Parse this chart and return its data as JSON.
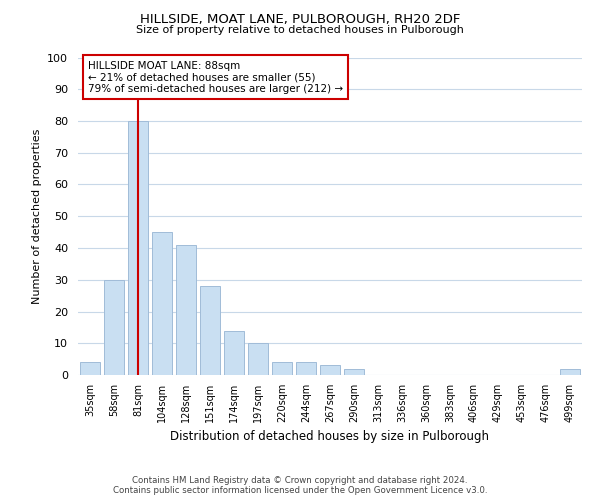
{
  "title": "HILLSIDE, MOAT LANE, PULBOROUGH, RH20 2DF",
  "subtitle": "Size of property relative to detached houses in Pulborough",
  "xlabel": "Distribution of detached houses by size in Pulborough",
  "ylabel": "Number of detached properties",
  "bar_labels": [
    "35sqm",
    "58sqm",
    "81sqm",
    "104sqm",
    "128sqm",
    "151sqm",
    "174sqm",
    "197sqm",
    "220sqm",
    "244sqm",
    "267sqm",
    "290sqm",
    "313sqm",
    "336sqm",
    "360sqm",
    "383sqm",
    "406sqm",
    "429sqm",
    "453sqm",
    "476sqm",
    "499sqm"
  ],
  "bar_values": [
    4,
    30,
    80,
    45,
    41,
    28,
    14,
    10,
    4,
    4,
    3,
    2,
    0,
    0,
    0,
    0,
    0,
    0,
    0,
    0,
    2
  ],
  "bar_color": "#c9dff2",
  "bar_edge_color": "#a0bcd8",
  "vline_x": 2,
  "vline_color": "#cc0000",
  "ylim": [
    0,
    100
  ],
  "yticks": [
    0,
    10,
    20,
    30,
    40,
    50,
    60,
    70,
    80,
    90,
    100
  ],
  "annotation_title": "HILLSIDE MOAT LANE: 88sqm",
  "annotation_line1": "← 21% of detached houses are smaller (55)",
  "annotation_line2": "79% of semi-detached houses are larger (212) →",
  "annotation_box_color": "#ffffff",
  "annotation_box_edge": "#cc0000",
  "footer_line1": "Contains HM Land Registry data © Crown copyright and database right 2024.",
  "footer_line2": "Contains public sector information licensed under the Open Government Licence v3.0.",
  "background_color": "#ffffff",
  "grid_color": "#c8d8e8"
}
